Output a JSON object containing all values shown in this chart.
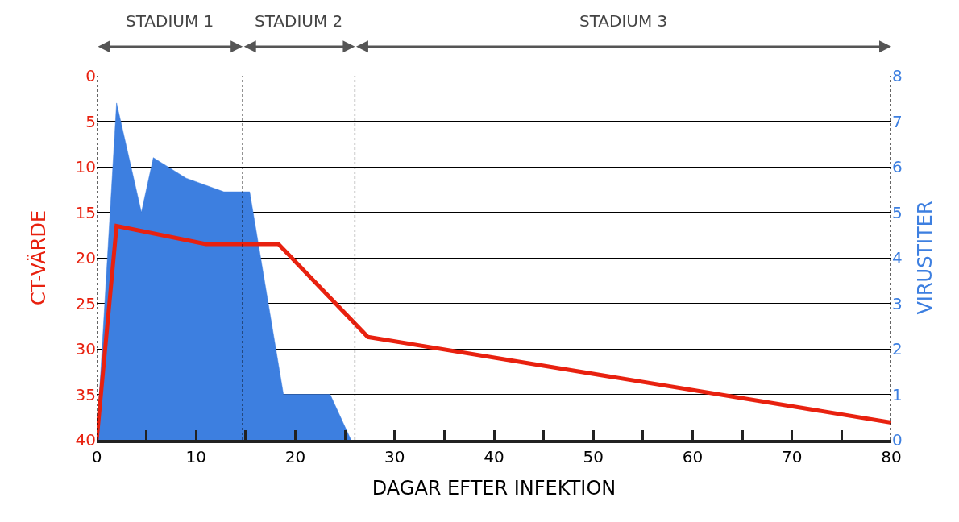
{
  "chart_data": {
    "type": "line",
    "xlabel": "DAGAR EFTER INFEKTION",
    "ylabel": "CT-VÄRDE",
    "y2label": "VIRUSTITER",
    "xlim": [
      0,
      80
    ],
    "xticks": [
      0,
      {
        "value": 5,
        "label": null
      },
      10,
      {
        "value": 15,
        "label": null
      },
      20,
      {
        "value": 25,
        "label": null
      },
      30,
      {
        "value": 35,
        "label": null
      },
      40,
      {
        "value": 45,
        "label": null
      },
      50,
      {
        "value": 55,
        "label": null
      },
      60,
      {
        "value": 65,
        "label": null
      },
      70,
      {
        "value": 75,
        "label": null
      },
      80
    ],
    "ylim": [
      40,
      0
    ],
    "yticks": [
      0,
      5,
      10,
      15,
      20,
      25,
      30,
      35,
      40
    ],
    "y2lim": [
      0,
      8
    ],
    "y2ticks": [
      0,
      1,
      2,
      3,
      4,
      5,
      6,
      7,
      8
    ],
    "grid": "y",
    "series": [
      {
        "type": "area",
        "axis": "y2",
        "color": "#3d7fe0",
        "x": [
          0,
          2,
          4.5,
          5.7,
          9,
          12.8,
          15.4,
          18.8,
          23.5,
          25.6
        ],
        "values": [
          0,
          7.4,
          5.0,
          6.2,
          5.75,
          5.45,
          5.45,
          1.0,
          1.0,
          0
        ]
      },
      {
        "color": "#e8210f",
        "x": [
          0,
          2,
          11,
          18.3,
          27.3,
          80
        ],
        "values": [
          40,
          16.5,
          18.5,
          18.5,
          28.7,
          38.1
        ]
      }
    ],
    "ref_lines": [
      {
        "axis": "x",
        "value": 0,
        "line_style": "dotted"
      },
      {
        "axis": "x",
        "value": 14.7,
        "line_style": "dotted"
      },
      {
        "axis": "x",
        "value": 26,
        "line_style": "dotted"
      },
      {
        "axis": "x",
        "value": 80,
        "line_style": "dotted"
      }
    ],
    "annotations": [
      "STADIUM 1",
      "STADIUM 2",
      "STADIUM 3"
    ]
  }
}
